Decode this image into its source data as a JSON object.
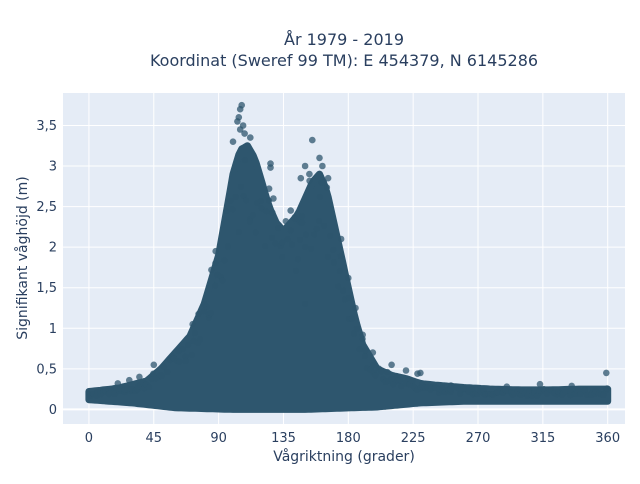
{
  "chart_data": {
    "type": "scatter",
    "title_line1": "År 1979 - 2019",
    "title_line2": "Koordinat (Sweref 99 TM): E 454379, N 6145286",
    "xlabel": "Vågriktning (grader)",
    "ylabel": "Signifikant våghöjd (m)",
    "xlim": [
      -18,
      372
    ],
    "ylim": [
      -0.18,
      3.9
    ],
    "x_ticks": [
      0,
      45,
      90,
      135,
      180,
      225,
      270,
      315,
      360
    ],
    "x_tick_labels": [
      "0",
      "45",
      "90",
      "135",
      "180",
      "225",
      "270",
      "315",
      "360"
    ],
    "y_ticks": [
      0,
      0.5,
      1,
      1.5,
      2,
      2.5,
      3,
      3.5
    ],
    "y_tick_labels": [
      "0",
      "0,5",
      "1",
      "1,5",
      "2",
      "2,5",
      "3",
      "3,5"
    ],
    "grid": true,
    "background_color": "#e5ecf6",
    "point_color": "#2e566e",
    "envelope": {
      "description": "upper boundary of the dense point cloud (direction in degrees, height in m)",
      "x": [
        0,
        20,
        40,
        50,
        60,
        70,
        80,
        90,
        95,
        100,
        105,
        110,
        115,
        120,
        125,
        130,
        135,
        140,
        145,
        150,
        155,
        160,
        165,
        170,
        175,
        180,
        185,
        190,
        200,
        210,
        220,
        230,
        240,
        260,
        280,
        300,
        320,
        340,
        360
      ],
      "y": [
        0.22,
        0.26,
        0.35,
        0.5,
        0.7,
        0.9,
        1.3,
        1.9,
        2.4,
        2.9,
        3.2,
        3.25,
        3.1,
        2.8,
        2.5,
        2.3,
        2.2,
        2.3,
        2.4,
        2.6,
        2.8,
        2.9,
        2.7,
        2.3,
        1.9,
        1.5,
        1.1,
        0.8,
        0.5,
        0.42,
        0.38,
        0.32,
        0.3,
        0.27,
        0.25,
        0.24,
        0.24,
        0.25,
        0.25
      ]
    },
    "floor": {
      "description": "lower boundary of the point cloud (direction in degrees, height in m)",
      "x": [
        0,
        30,
        60,
        100,
        150,
        200,
        230,
        260,
        300,
        360
      ],
      "y": [
        0.12,
        0.08,
        0.02,
        0.0,
        0.0,
        0.03,
        0.08,
        0.1,
        0.1,
        0.1
      ]
    },
    "outliers": [
      {
        "x": 106,
        "y": 3.75
      },
      {
        "x": 105,
        "y": 3.7
      },
      {
        "x": 104,
        "y": 3.6
      },
      {
        "x": 103,
        "y": 3.55
      },
      {
        "x": 107,
        "y": 3.5
      },
      {
        "x": 105,
        "y": 3.45
      },
      {
        "x": 108,
        "y": 3.4
      },
      {
        "x": 112,
        "y": 3.35
      },
      {
        "x": 100,
        "y": 3.3
      },
      {
        "x": 155,
        "y": 3.32
      },
      {
        "x": 160,
        "y": 3.1
      },
      {
        "x": 162,
        "y": 3.0
      },
      {
        "x": 150,
        "y": 3.0
      },
      {
        "x": 126,
        "y": 3.03
      },
      {
        "x": 126,
        "y": 2.98
      },
      {
        "x": 166,
        "y": 2.85
      },
      {
        "x": 163,
        "y": 2.8
      },
      {
        "x": 147,
        "y": 2.85
      },
      {
        "x": 153,
        "y": 2.9
      },
      {
        "x": 125,
        "y": 2.72
      },
      {
        "x": 128,
        "y": 2.6
      },
      {
        "x": 140,
        "y": 2.45
      },
      {
        "x": 143,
        "y": 2.35
      },
      {
        "x": 148,
        "y": 2.3
      },
      {
        "x": 145,
        "y": 1.85
      },
      {
        "x": 150,
        "y": 1.3
      },
      {
        "x": 230,
        "y": 0.45
      },
      {
        "x": 228,
        "y": 0.44
      },
      {
        "x": 220,
        "y": 0.48
      },
      {
        "x": 210,
        "y": 0.55
      },
      {
        "x": 251,
        "y": 0.25
      },
      {
        "x": 260,
        "y": 0.26
      },
      {
        "x": 290,
        "y": 0.28
      },
      {
        "x": 313,
        "y": 0.31
      },
      {
        "x": 335,
        "y": 0.29
      },
      {
        "x": 359,
        "y": 0.45
      },
      {
        "x": 20,
        "y": 0.32
      },
      {
        "x": 28,
        "y": 0.36
      },
      {
        "x": 35,
        "y": 0.4
      },
      {
        "x": 45,
        "y": 0.55
      },
      {
        "x": 62,
        "y": 0.72
      },
      {
        "x": 72,
        "y": 1.05
      },
      {
        "x": 80,
        "y": 1.3
      },
      {
        "x": 85,
        "y": 1.72
      },
      {
        "x": 88,
        "y": 1.95
      },
      {
        "x": 175,
        "y": 2.1
      },
      {
        "x": 180,
        "y": 1.62
      },
      {
        "x": 185,
        "y": 1.25
      },
      {
        "x": 190,
        "y": 0.92
      },
      {
        "x": 197,
        "y": 0.7
      }
    ]
  }
}
